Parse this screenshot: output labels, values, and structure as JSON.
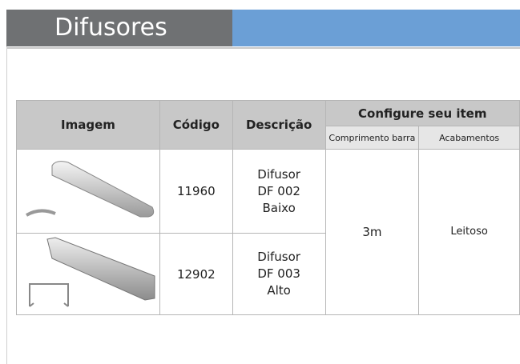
{
  "header": {
    "title": "Difusores"
  },
  "table": {
    "columns": [
      "Imagem",
      "Código",
      "Descrição",
      "Configure seu item"
    ],
    "subcolumns": [
      "Comprimento barra",
      "Acabamentos"
    ],
    "rows": [
      {
        "code": "11960",
        "description": [
          "Difusor",
          "DF 002",
          "Baixo"
        ]
      },
      {
        "code": "12902",
        "description": [
          "Difusor",
          "DF 003",
          "Alto"
        ]
      }
    ],
    "length": "3m",
    "finish": "Leitoso"
  }
}
